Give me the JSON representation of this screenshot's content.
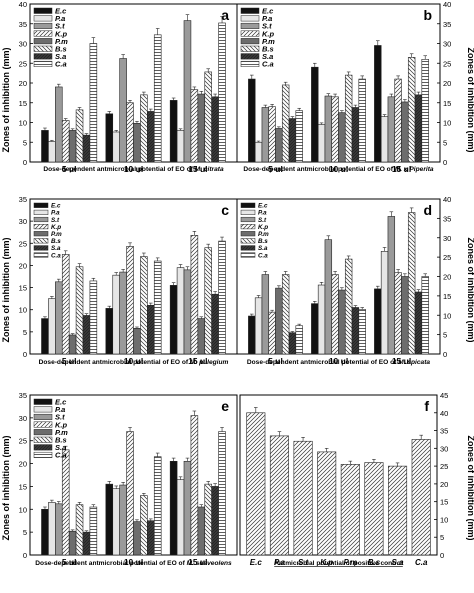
{
  "figure": {
    "y_axis_label": "Zones of inhibition (mm)"
  },
  "colors": {
    "E.c": "#111111",
    "P.a": "#e6e6e6",
    "S.t": "#9a9a9a",
    "K.p": "#ffffff",
    "P.m": "#6d6d6d",
    "B.s": "#ffffff",
    "S.a": "#3c3c3c",
    "C.a": "#ffffff",
    "single": "#ffffff"
  },
  "chart_data": [
    {
      "type": "bar",
      "panel_letter": "a",
      "caption_prefix": "Dose-dependent antmicrobial potential of EO of ",
      "caption_species": "M. citrata",
      "categories": [
        "5 ul",
        "10 ul",
        "15 ul"
      ],
      "ylim": [
        0,
        40
      ],
      "yticks": [
        0,
        5,
        10,
        15,
        20,
        25,
        30,
        35,
        40
      ],
      "tick_labels_side": "left",
      "series": [
        {
          "name": "E.c",
          "values": [
            8.0,
            12.2,
            15.6
          ],
          "errors": [
            0.6,
            0.6,
            0.6
          ]
        },
        {
          "name": "P.a",
          "values": [
            5.2,
            7.6,
            8.0
          ],
          "errors": [
            0.3,
            0.4,
            0.4
          ]
        },
        {
          "name": "S.t",
          "values": [
            19.0,
            26.2,
            35.8
          ],
          "errors": [
            0.7,
            1.0,
            1.5
          ]
        },
        {
          "name": "K.p",
          "values": [
            10.5,
            15.0,
            18.3
          ],
          "errors": [
            0.5,
            0.6,
            0.7
          ]
        },
        {
          "name": "P.m",
          "values": [
            8.0,
            9.8,
            17.2
          ],
          "errors": [
            0.4,
            0.5,
            0.7
          ]
        },
        {
          "name": "B.s",
          "values": [
            13.2,
            17.0,
            22.8
          ],
          "errors": [
            0.6,
            0.7,
            0.8
          ]
        },
        {
          "name": "S.a",
          "values": [
            6.8,
            12.8,
            16.5
          ],
          "errors": [
            0.4,
            0.6,
            0.7
          ]
        },
        {
          "name": "C.a",
          "values": [
            30.0,
            32.2,
            35.2
          ],
          "errors": [
            1.5,
            1.6,
            1.6
          ]
        }
      ]
    },
    {
      "type": "bar",
      "panel_letter": "b",
      "caption_prefix": "Dose-dependent antmicrobial potential of EO of ",
      "caption_species": "M. x Piperita",
      "categories": [
        "5 ul",
        "10 ul",
        "15 ul"
      ],
      "ylim": [
        0,
        40
      ],
      "yticks": [
        0,
        5,
        10,
        15,
        20,
        25,
        30,
        35,
        40
      ],
      "tick_labels_side": "right",
      "series": [
        {
          "name": "E.c",
          "values": [
            21.0,
            24.0,
            29.5
          ],
          "errors": [
            1.0,
            1.0,
            1.2
          ]
        },
        {
          "name": "P.a",
          "values": [
            5.0,
            9.5,
            11.5
          ],
          "errors": [
            0.3,
            0.4,
            0.5
          ]
        },
        {
          "name": "S.t",
          "values": [
            13.8,
            16.7,
            16.5
          ],
          "errors": [
            0.6,
            0.6,
            0.7
          ]
        },
        {
          "name": "K.p",
          "values": [
            14.0,
            16.5,
            21.0
          ],
          "errors": [
            0.6,
            0.7,
            0.8
          ]
        },
        {
          "name": "P.m",
          "values": [
            8.5,
            12.5,
            15.2
          ],
          "errors": [
            0.4,
            0.5,
            0.6
          ]
        },
        {
          "name": "B.s",
          "values": [
            19.5,
            22.0,
            26.5
          ],
          "errors": [
            0.7,
            0.8,
            0.9
          ]
        },
        {
          "name": "S.a",
          "values": [
            11.0,
            13.8,
            17.0
          ],
          "errors": [
            0.5,
            0.6,
            0.7
          ]
        },
        {
          "name": "C.a",
          "values": [
            13.0,
            21.0,
            26.0
          ],
          "errors": [
            0.6,
            0.8,
            0.9
          ]
        }
      ]
    },
    {
      "type": "bar",
      "panel_letter": "c",
      "caption_prefix": "Dose-dependent antmicrobial potential of EO of ",
      "caption_species": "M. pulegium",
      "categories": [
        "5 ul",
        "10 ul",
        "15 ul"
      ],
      "ylim": [
        0,
        35
      ],
      "yticks": [
        0,
        5,
        10,
        15,
        20,
        25,
        30,
        35
      ],
      "tick_labels_side": "left",
      "series": [
        {
          "name": "E.c",
          "values": [
            8.0,
            10.3,
            15.5
          ],
          "errors": [
            0.4,
            0.5,
            0.6
          ]
        },
        {
          "name": "P.a",
          "values": [
            12.5,
            17.8,
            19.5
          ],
          "errors": [
            0.5,
            0.6,
            0.7
          ]
        },
        {
          "name": "S.t",
          "values": [
            16.3,
            18.5,
            19.0
          ],
          "errors": [
            0.6,
            0.6,
            0.7
          ]
        },
        {
          "name": "K.p",
          "values": [
            22.5,
            24.3,
            26.8
          ],
          "errors": [
            0.8,
            0.8,
            0.9
          ]
        },
        {
          "name": "P.m",
          "values": [
            4.3,
            5.8,
            8.0
          ],
          "errors": [
            0.3,
            0.3,
            0.4
          ]
        },
        {
          "name": "B.s",
          "values": [
            19.7,
            22.0,
            24.0
          ],
          "errors": [
            0.7,
            0.8,
            0.8
          ]
        },
        {
          "name": "S.a",
          "values": [
            8.7,
            11.0,
            13.5
          ],
          "errors": [
            0.4,
            0.5,
            0.6
          ]
        },
        {
          "name": "C.a",
          "values": [
            16.5,
            21.0,
            25.5
          ],
          "errors": [
            0.6,
            0.7,
            0.9
          ]
        }
      ]
    },
    {
      "type": "bar",
      "panel_letter": "d",
      "caption_prefix": "Dose-dependent antmicrobial potential of EO of ",
      "caption_species": "M. spicata",
      "categories": [
        "5 ul",
        "10 ul",
        "15 ul"
      ],
      "ylim": [
        0,
        40
      ],
      "yticks": [
        0,
        5,
        10,
        15,
        20,
        25,
        30,
        35,
        40
      ],
      "tick_labels_side": "right",
      "series": [
        {
          "name": "E.c",
          "values": [
            9.8,
            13.0,
            16.8
          ],
          "errors": [
            0.5,
            0.6,
            0.7
          ]
        },
        {
          "name": "P.a",
          "values": [
            14.5,
            17.8,
            26.5
          ],
          "errors": [
            0.6,
            0.7,
            1.0
          ]
        },
        {
          "name": "S.t",
          "values": [
            20.5,
            29.5,
            35.5
          ],
          "errors": [
            0.8,
            1.0,
            1.2
          ]
        },
        {
          "name": "K.p",
          "values": [
            10.8,
            20.5,
            21.0
          ],
          "errors": [
            0.5,
            0.8,
            0.8
          ]
        },
        {
          "name": "P.m",
          "values": [
            17.0,
            16.5,
            20.0
          ],
          "errors": [
            0.6,
            0.6,
            0.7
          ]
        },
        {
          "name": "B.s",
          "values": [
            20.5,
            24.5,
            36.5
          ],
          "errors": [
            0.8,
            0.8,
            1.2
          ]
        },
        {
          "name": "S.a",
          "values": [
            5.5,
            12.0,
            16.0
          ],
          "errors": [
            0.3,
            0.5,
            0.6
          ]
        },
        {
          "name": "C.a",
          "values": [
            7.3,
            11.5,
            20.0
          ],
          "errors": [
            0.4,
            0.5,
            0.7
          ]
        }
      ]
    },
    {
      "type": "bar",
      "panel_letter": "e",
      "caption_prefix": "Dose-dependent antmicrobial potential of EO of ",
      "caption_species": "M. suaveolens",
      "categories": [
        "5 ul",
        "10 ul",
        "15 ul"
      ],
      "ylim": [
        0,
        35
      ],
      "yticks": [
        0,
        5,
        10,
        15,
        20,
        25,
        30,
        35
      ],
      "tick_labels_side": "left",
      "series": [
        {
          "name": "E.c",
          "values": [
            10.0,
            15.5,
            20.5
          ],
          "errors": [
            0.5,
            0.6,
            0.7
          ]
        },
        {
          "name": "P.a",
          "values": [
            11.5,
            14.5,
            16.5
          ],
          "errors": [
            0.5,
            0.6,
            0.6
          ]
        },
        {
          "name": "S.t",
          "values": [
            11.2,
            15.3,
            20.5
          ],
          "errors": [
            0.5,
            0.6,
            0.7
          ]
        },
        {
          "name": "K.p",
          "values": [
            23.0,
            27.0,
            30.5
          ],
          "errors": [
            0.8,
            0.9,
            1.0
          ]
        },
        {
          "name": "P.m",
          "values": [
            5.2,
            7.3,
            10.5
          ],
          "errors": [
            0.3,
            0.4,
            0.5
          ]
        },
        {
          "name": "B.s",
          "values": [
            11.0,
            13.0,
            15.5
          ],
          "errors": [
            0.5,
            0.5,
            0.6
          ]
        },
        {
          "name": "S.a",
          "values": [
            5.0,
            7.5,
            15.0
          ],
          "errors": [
            0.3,
            0.4,
            0.6
          ]
        },
        {
          "name": "C.a",
          "values": [
            10.5,
            21.5,
            27.0
          ],
          "errors": [
            0.5,
            0.8,
            0.9
          ]
        }
      ]
    },
    {
      "type": "bar",
      "panel_letter": "f",
      "caption": "Antmicrobial potential of positive control",
      "categories": [
        "E.c",
        "P.a",
        "S.t",
        "K.p",
        "P.m",
        "B.s",
        "S.a",
        "C.a"
      ],
      "values": [
        40.0,
        33.5,
        32.0,
        29.0,
        25.5,
        26.0,
        25.0,
        32.5
      ],
      "errors": [
        1.5,
        1.2,
        1.1,
        1.0,
        0.9,
        0.9,
        0.9,
        1.2
      ],
      "ylim": [
        0,
        45
      ],
      "yticks": [
        0,
        5,
        10,
        15,
        20,
        25,
        30,
        35,
        40,
        45
      ],
      "tick_labels_side": "right"
    }
  ]
}
